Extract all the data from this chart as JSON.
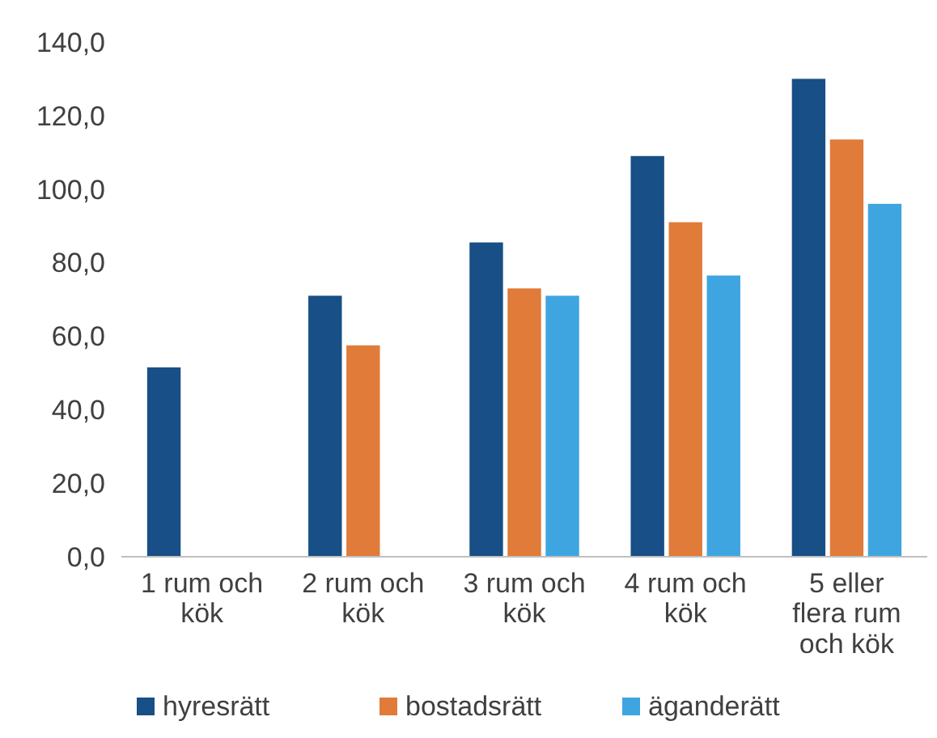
{
  "chart_data": {
    "type": "bar",
    "categories": [
      "1 rum och kök",
      "2 rum och kök",
      "3 rum och kök",
      "4 rum och kök",
      "5 eller flera rum och kök"
    ],
    "series": [
      {
        "name": "hyresrätt",
        "color": "#174f86",
        "values": [
          51.5,
          71,
          85.5,
          109,
          130
        ]
      },
      {
        "name": "bostadsrätt",
        "color": "#e07b39",
        "values": [
          null,
          57.5,
          73,
          91,
          113.5
        ]
      },
      {
        "name": "äganderätt",
        "color": "#3fa5e0",
        "values": [
          null,
          null,
          71,
          76.5,
          96
        ]
      }
    ],
    "ylim": [
      0,
      140
    ],
    "yticks": [
      {
        "value": 0,
        "label": "0,0"
      },
      {
        "value": 20,
        "label": "20,0"
      },
      {
        "value": 40,
        "label": "40,0"
      },
      {
        "value": 60,
        "label": "60,0"
      },
      {
        "value": 80,
        "label": "80,0"
      },
      {
        "value": 100,
        "label": "100,0"
      },
      {
        "value": 120,
        "label": "120,0"
      },
      {
        "value": 140,
        "label": "140,0"
      }
    ],
    "grid": false,
    "legend": "bottom"
  }
}
